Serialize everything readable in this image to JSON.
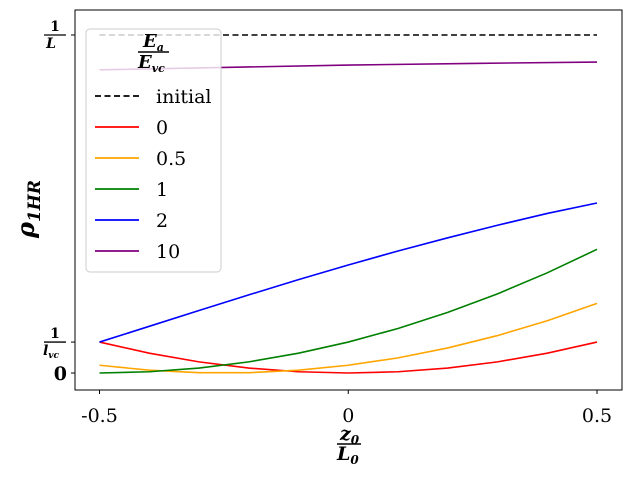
{
  "chart_data": {
    "type": "line",
    "xlabel": {
      "num": "z",
      "num_sub": "0",
      "den": "L",
      "den_sub": "0"
    },
    "ylabel": {
      "main": "ρ",
      "sub": "1HR"
    },
    "xlim": [
      -0.5,
      0.5
    ],
    "xticks": [
      {
        "value": -0.5,
        "label": "-0.5"
      },
      {
        "value": 0,
        "label": "0"
      },
      {
        "value": 0.5,
        "label": "0.5"
      }
    ],
    "yticks": [
      {
        "value": 0,
        "label": "0"
      },
      {
        "value": 0.0915,
        "num": "1",
        "den": "l",
        "den_sub": "vc"
      },
      {
        "value": 1.0,
        "num": "1",
        "den": "L"
      }
    ],
    "ylim": [
      -0.05,
      1.04
    ],
    "legend": {
      "title": {
        "num": "E",
        "num_sub": "a",
        "den": "E",
        "den_sub": "vc"
      },
      "placement": "upper-left"
    },
    "series": [
      {
        "name": "initial",
        "color": "#000000",
        "dash": "dashed",
        "x": [
          -0.5,
          0.5
        ],
        "y": [
          1.0,
          1.0
        ]
      },
      {
        "name": "0",
        "color": "#ff0000",
        "dash": "solid",
        "x": [
          -0.5,
          -0.4,
          -0.3,
          -0.2,
          -0.1,
          0,
          0.1,
          0.2,
          0.3,
          0.4,
          0.5
        ],
        "y": [
          0.0915,
          0.0586,
          0.0329,
          0.0146,
          0.0037,
          0,
          0.0037,
          0.0146,
          0.0329,
          0.0586,
          0.0915
        ]
      },
      {
        "name": "0.5",
        "color": "#ffa500",
        "dash": "solid",
        "x": [
          -0.5,
          -0.4,
          -0.3,
          -0.2,
          -0.1,
          0,
          0.1,
          0.2,
          0.3,
          0.4,
          0.5
        ],
        "y": [
          0.0229,
          0.0082,
          0.0009,
          0.0009,
          0.0082,
          0.0229,
          0.0448,
          0.0741,
          0.1107,
          0.1546,
          0.2059
        ]
      },
      {
        "name": "1",
        "color": "#008000",
        "dash": "solid",
        "x": [
          -0.5,
          -0.4,
          -0.3,
          -0.2,
          -0.1,
          0,
          0.1,
          0.2,
          0.3,
          0.4,
          0.5
        ],
        "y": [
          0,
          0.0037,
          0.0146,
          0.0329,
          0.0586,
          0.0915,
          0.1317,
          0.1793,
          0.2342,
          0.2964,
          0.3659
        ]
      },
      {
        "name": "2",
        "color": "#0000ff",
        "dash": "solid",
        "x": [
          -0.5,
          -0.4,
          -0.3,
          -0.2,
          -0.1,
          0,
          0.1,
          0.2,
          0.3,
          0.4,
          0.5
        ],
        "y": [
          0.0915,
          0.1381,
          0.1848,
          0.2311,
          0.2763,
          0.3196,
          0.361,
          0.4,
          0.4372,
          0.472,
          0.503
        ]
      },
      {
        "name": "10",
        "color": "#800080",
        "dash": "solid",
        "x": [
          -0.5,
          -0.25,
          0,
          0.25,
          0.5
        ],
        "y": [
          0.897,
          0.904,
          0.911,
          0.916,
          0.92
        ]
      }
    ]
  }
}
